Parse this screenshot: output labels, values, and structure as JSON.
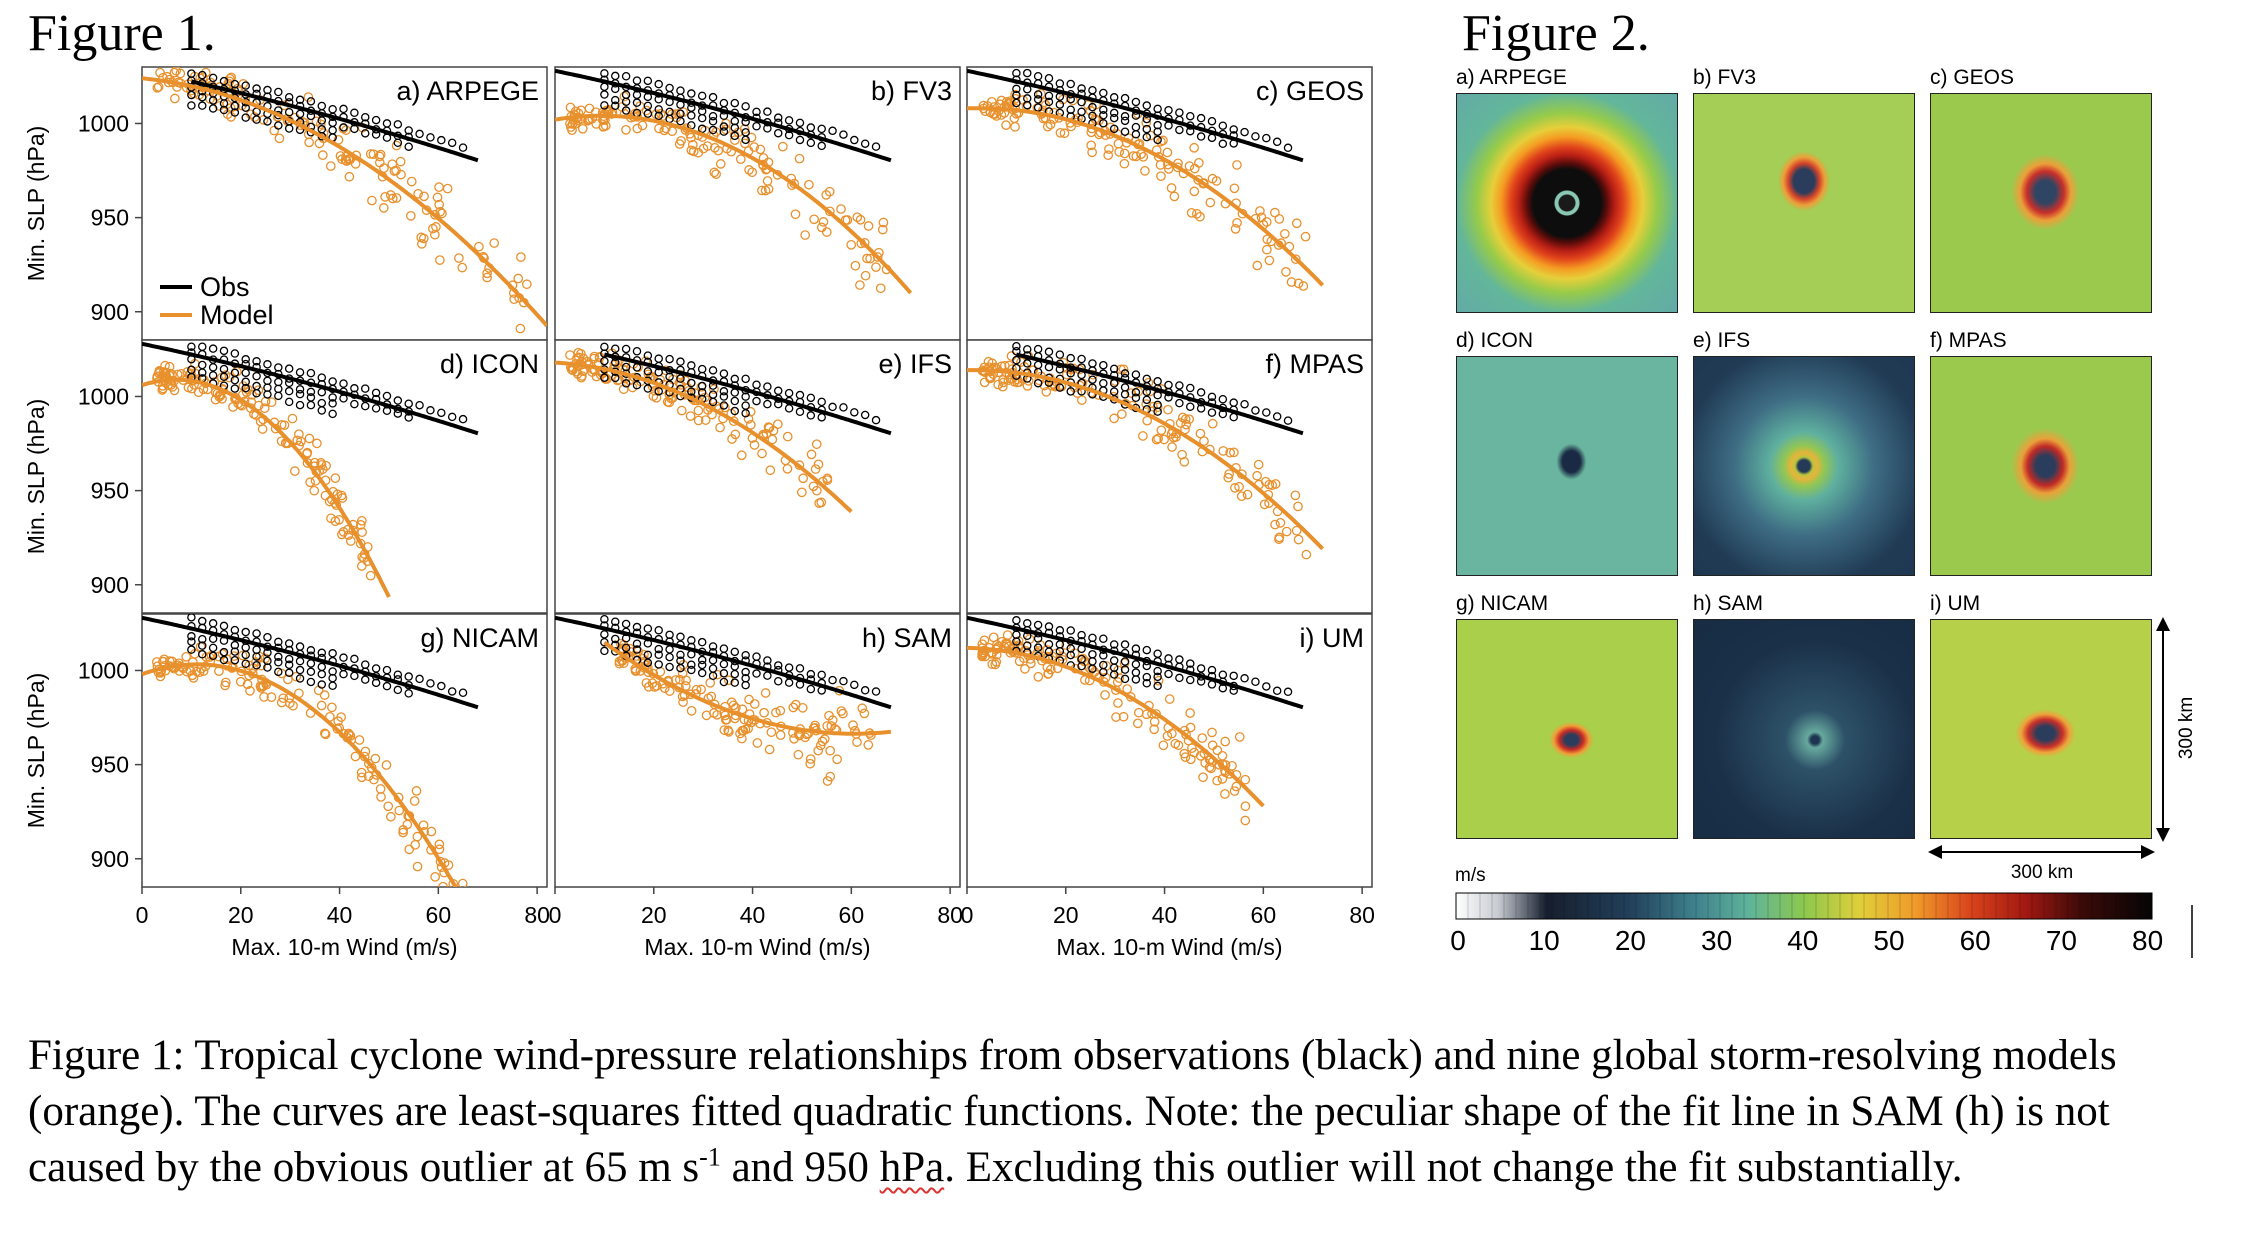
{
  "figure1": {
    "heading": "Figure 1.",
    "ylabel": "Min. SLP (hPa)",
    "xlabel": "Max. 10-m Wind (m/s)",
    "legend": [
      {
        "label": "Obs",
        "color": "#000000"
      },
      {
        "label": "Model",
        "color": "#e8902c"
      }
    ]
  },
  "figure2": {
    "heading": "Figure 2.",
    "panels": [
      {
        "label": "a) ARPEGE",
        "style": "arpege"
      },
      {
        "label": "b) FV3",
        "style": "fv3"
      },
      {
        "label": "c) GEOS",
        "style": "geos"
      },
      {
        "label": "d) ICON",
        "style": "icon"
      },
      {
        "label": "e) IFS",
        "style": "ifs"
      },
      {
        "label": "f) MPAS",
        "style": "mpas"
      },
      {
        "label": "g) NICAM",
        "style": "nicam"
      },
      {
        "label": "h) SAM",
        "style": "sam"
      },
      {
        "label": "i)  UM",
        "style": "um"
      }
    ],
    "scale_vertical": "300 km",
    "scale_horizontal": "300 km",
    "colorbar": {
      "unit": "m/s",
      "ticks": [
        "0",
        "10",
        "20",
        "30",
        "40",
        "50",
        "60",
        "70",
        "80"
      ]
    }
  },
  "caption": {
    "part1": "Figure 1: Tropical cyclone wind-pressure relationships from observations (black) and nine global storm-resolving models (orange).  The curves are least-squares fitted quadratic functions. Note: the peculiar shape of the fit line in SAM (h) is not caused by the obvious outlier at 65 m s",
    "sup": "-1",
    "part2": " and 950 ",
    "hpa": "hPa",
    "part3": ". Excluding this outlier will not change the fit substantially."
  },
  "chart_data": [
    {
      "type": "scatter",
      "title": "a) ARPEGE",
      "xlim": [
        0,
        82
      ],
      "ylim": [
        885,
        1030
      ],
      "xticks": [
        0,
        20,
        40,
        60,
        80
      ],
      "yticks": [
        900,
        950,
        1000
      ],
      "series": [
        {
          "name": "Obs",
          "fit": [
            1028,
            -0.55,
            -0.0022
          ],
          "xrange": [
            10,
            68
          ]
        },
        {
          "name": "Model",
          "fit": [
            1024,
            -0.25,
            -0.0165
          ],
          "xrange": [
            0,
            82
          ]
        }
      ]
    },
    {
      "type": "scatter",
      "title": "b) FV3",
      "xlim": [
        0,
        82
      ],
      "ylim": [
        885,
        1030
      ],
      "xticks": [
        0,
        20,
        40,
        60,
        80
      ],
      "yticks": [
        900,
        950,
        1000
      ],
      "series": [
        {
          "name": "Obs",
          "fit": [
            1028,
            -0.55,
            -0.0022
          ],
          "xrange": [
            0,
            68
          ]
        },
        {
          "name": "Model",
          "fit": [
            1002,
            0.45,
            -0.024
          ],
          "xrange": [
            0,
            72
          ]
        }
      ]
    },
    {
      "type": "scatter",
      "title": "c) GEOS",
      "xlim": [
        0,
        82
      ],
      "ylim": [
        885,
        1030
      ],
      "xticks": [
        0,
        20,
        40,
        60,
        80
      ],
      "yticks": [
        900,
        950,
        1000
      ],
      "series": [
        {
          "name": "Obs",
          "fit": [
            1028,
            -0.55,
            -0.0022
          ],
          "xrange": [
            0,
            68
          ]
        },
        {
          "name": "Model",
          "fit": [
            1008,
            0.1,
            -0.0195
          ],
          "xrange": [
            0,
            72
          ]
        }
      ]
    },
    {
      "type": "scatter",
      "title": "d) ICON",
      "xlim": [
        0,
        82
      ],
      "ylim": [
        885,
        1030
      ],
      "xticks": [
        0,
        20,
        40,
        60,
        80
      ],
      "yticks": [
        900,
        950,
        1000
      ],
      "series": [
        {
          "name": "Obs",
          "fit": [
            1028,
            -0.55,
            -0.0022
          ],
          "xrange": [
            0,
            68
          ]
        },
        {
          "name": "Model",
          "fit": [
            1006,
            0.85,
            -0.062
          ],
          "xrange": [
            0,
            50
          ]
        }
      ]
    },
    {
      "type": "scatter",
      "title": "e) IFS",
      "xlim": [
        0,
        82
      ],
      "ylim": [
        885,
        1030
      ],
      "xticks": [
        0,
        20,
        40,
        60,
        80
      ],
      "yticks": [
        900,
        950,
        1000
      ],
      "series": [
        {
          "name": "Obs",
          "fit": [
            1028,
            -0.55,
            -0.0022
          ],
          "xrange": [
            10,
            68
          ]
        },
        {
          "name": "Model",
          "fit": [
            1018,
            -0.15,
            -0.0195
          ],
          "xrange": [
            0,
            60
          ]
        }
      ]
    },
    {
      "type": "scatter",
      "title": "f) MPAS",
      "xlim": [
        0,
        82
      ],
      "ylim": [
        885,
        1030
      ],
      "xticks": [
        0,
        20,
        40,
        60,
        80
      ],
      "yticks": [
        900,
        950,
        1000
      ],
      "series": [
        {
          "name": "Obs",
          "fit": [
            1028,
            -0.55,
            -0.0022
          ],
          "xrange": [
            10,
            68
          ]
        },
        {
          "name": "Model",
          "fit": [
            1014,
            0.05,
            -0.019
          ],
          "xrange": [
            0,
            72
          ]
        }
      ]
    },
    {
      "type": "scatter",
      "title": "g) NICAM",
      "xlim": [
        0,
        82
      ],
      "ylim": [
        885,
        1030
      ],
      "xticks": [
        0,
        20,
        40,
        60,
        80
      ],
      "yticks": [
        900,
        950,
        1000
      ],
      "series": [
        {
          "name": "Obs",
          "fit": [
            1028,
            -0.55,
            -0.0022
          ],
          "xrange": [
            0,
            68
          ]
        },
        {
          "name": "Model",
          "fit": [
            998,
            0.95,
            -0.043
          ],
          "xrange": [
            0,
            68
          ]
        }
      ]
    },
    {
      "type": "scatter",
      "title": "h) SAM",
      "xlim": [
        0,
        82
      ],
      "ylim": [
        885,
        1030
      ],
      "xticks": [
        0,
        20,
        40,
        60,
        80
      ],
      "yticks": [
        900,
        950,
        1000
      ],
      "series": [
        {
          "name": "Obs",
          "fit": [
            1028,
            -0.55,
            -0.0022
          ],
          "xrange": [
            0,
            68
          ]
        },
        {
          "name": "Model",
          "fit": [
            1036,
            -2.3,
            0.019
          ],
          "xrange": [
            10,
            68
          ]
        }
      ]
    },
    {
      "type": "scatter",
      "title": "i) UM",
      "xlim": [
        0,
        82
      ],
      "ylim": [
        885,
        1030
      ],
      "xticks": [
        0,
        20,
        40,
        60,
        80
      ],
      "yticks": [
        900,
        950,
        1000
      ],
      "series": [
        {
          "name": "Obs",
          "fit": [
            1028,
            -0.55,
            -0.0022
          ],
          "xrange": [
            0,
            68
          ]
        },
        {
          "name": "Model",
          "fit": [
            1012,
            -0.05,
            -0.0225
          ],
          "xrange": [
            0,
            60
          ]
        }
      ]
    }
  ]
}
